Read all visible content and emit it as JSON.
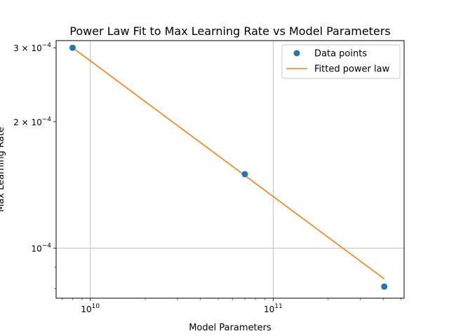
{
  "chart_data": {
    "type": "scatter",
    "title": "Power Law Fit to Max Learning Rate vs Model Parameters",
    "xlabel": "Model Parameters",
    "ylabel": "Max Learning Rate",
    "xscale": "log",
    "yscale": "log",
    "xlim": [
      6500000000.0,
      520000000000.0
    ],
    "ylim": [
      7.6e-05,
      0.000312
    ],
    "grid": true,
    "legend_position": "top-right",
    "x_ticks": [
      {
        "value": 10000000000.0,
        "base": "10",
        "exp": "10"
      },
      {
        "value": 100000000000.0,
        "base": "10",
        "exp": "11"
      }
    ],
    "y_ticks": [
      {
        "value": 0.0001,
        "coef": "",
        "base": "10",
        "exp": "−4"
      },
      {
        "value": 0.0002,
        "coef": "2 × ",
        "base": "10",
        "exp": "−4"
      },
      {
        "value": 0.0003,
        "coef": "3 × ",
        "base": "10",
        "exp": "−4"
      }
    ],
    "series": [
      {
        "name": "Data points",
        "kind": "scatter",
        "color": "#1f77b4",
        "x": [
          8000000000.0,
          70000000000.0,
          405000000000.0
        ],
        "y": [
          0.0003,
          0.00015,
          8.1e-05
        ]
      },
      {
        "name": "Fitted power law",
        "kind": "line",
        "color": "#ff7f0e",
        "x": [
          8000000000.0,
          405000000000.0
        ],
        "y": [
          0.0003,
          8.45e-05
        ]
      }
    ]
  }
}
